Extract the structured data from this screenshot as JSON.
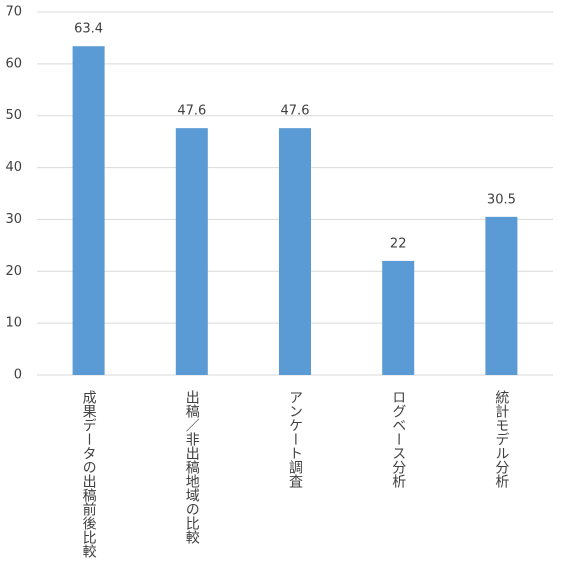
{
  "chart_data": {
    "type": "bar",
    "categories": [
      "成果データの出稿前後比較",
      "出稿／非出稿地域の比較",
      "アンケート調査",
      "ログベース分析",
      "統計モデル分析"
    ],
    "values": [
      63.4,
      47.6,
      47.6,
      22,
      30.5
    ],
    "color": "#5b9bd5",
    "ylim": [
      0,
      70
    ],
    "yticks": [
      0,
      10,
      20,
      30,
      40,
      50,
      60,
      70
    ],
    "grid": true
  }
}
